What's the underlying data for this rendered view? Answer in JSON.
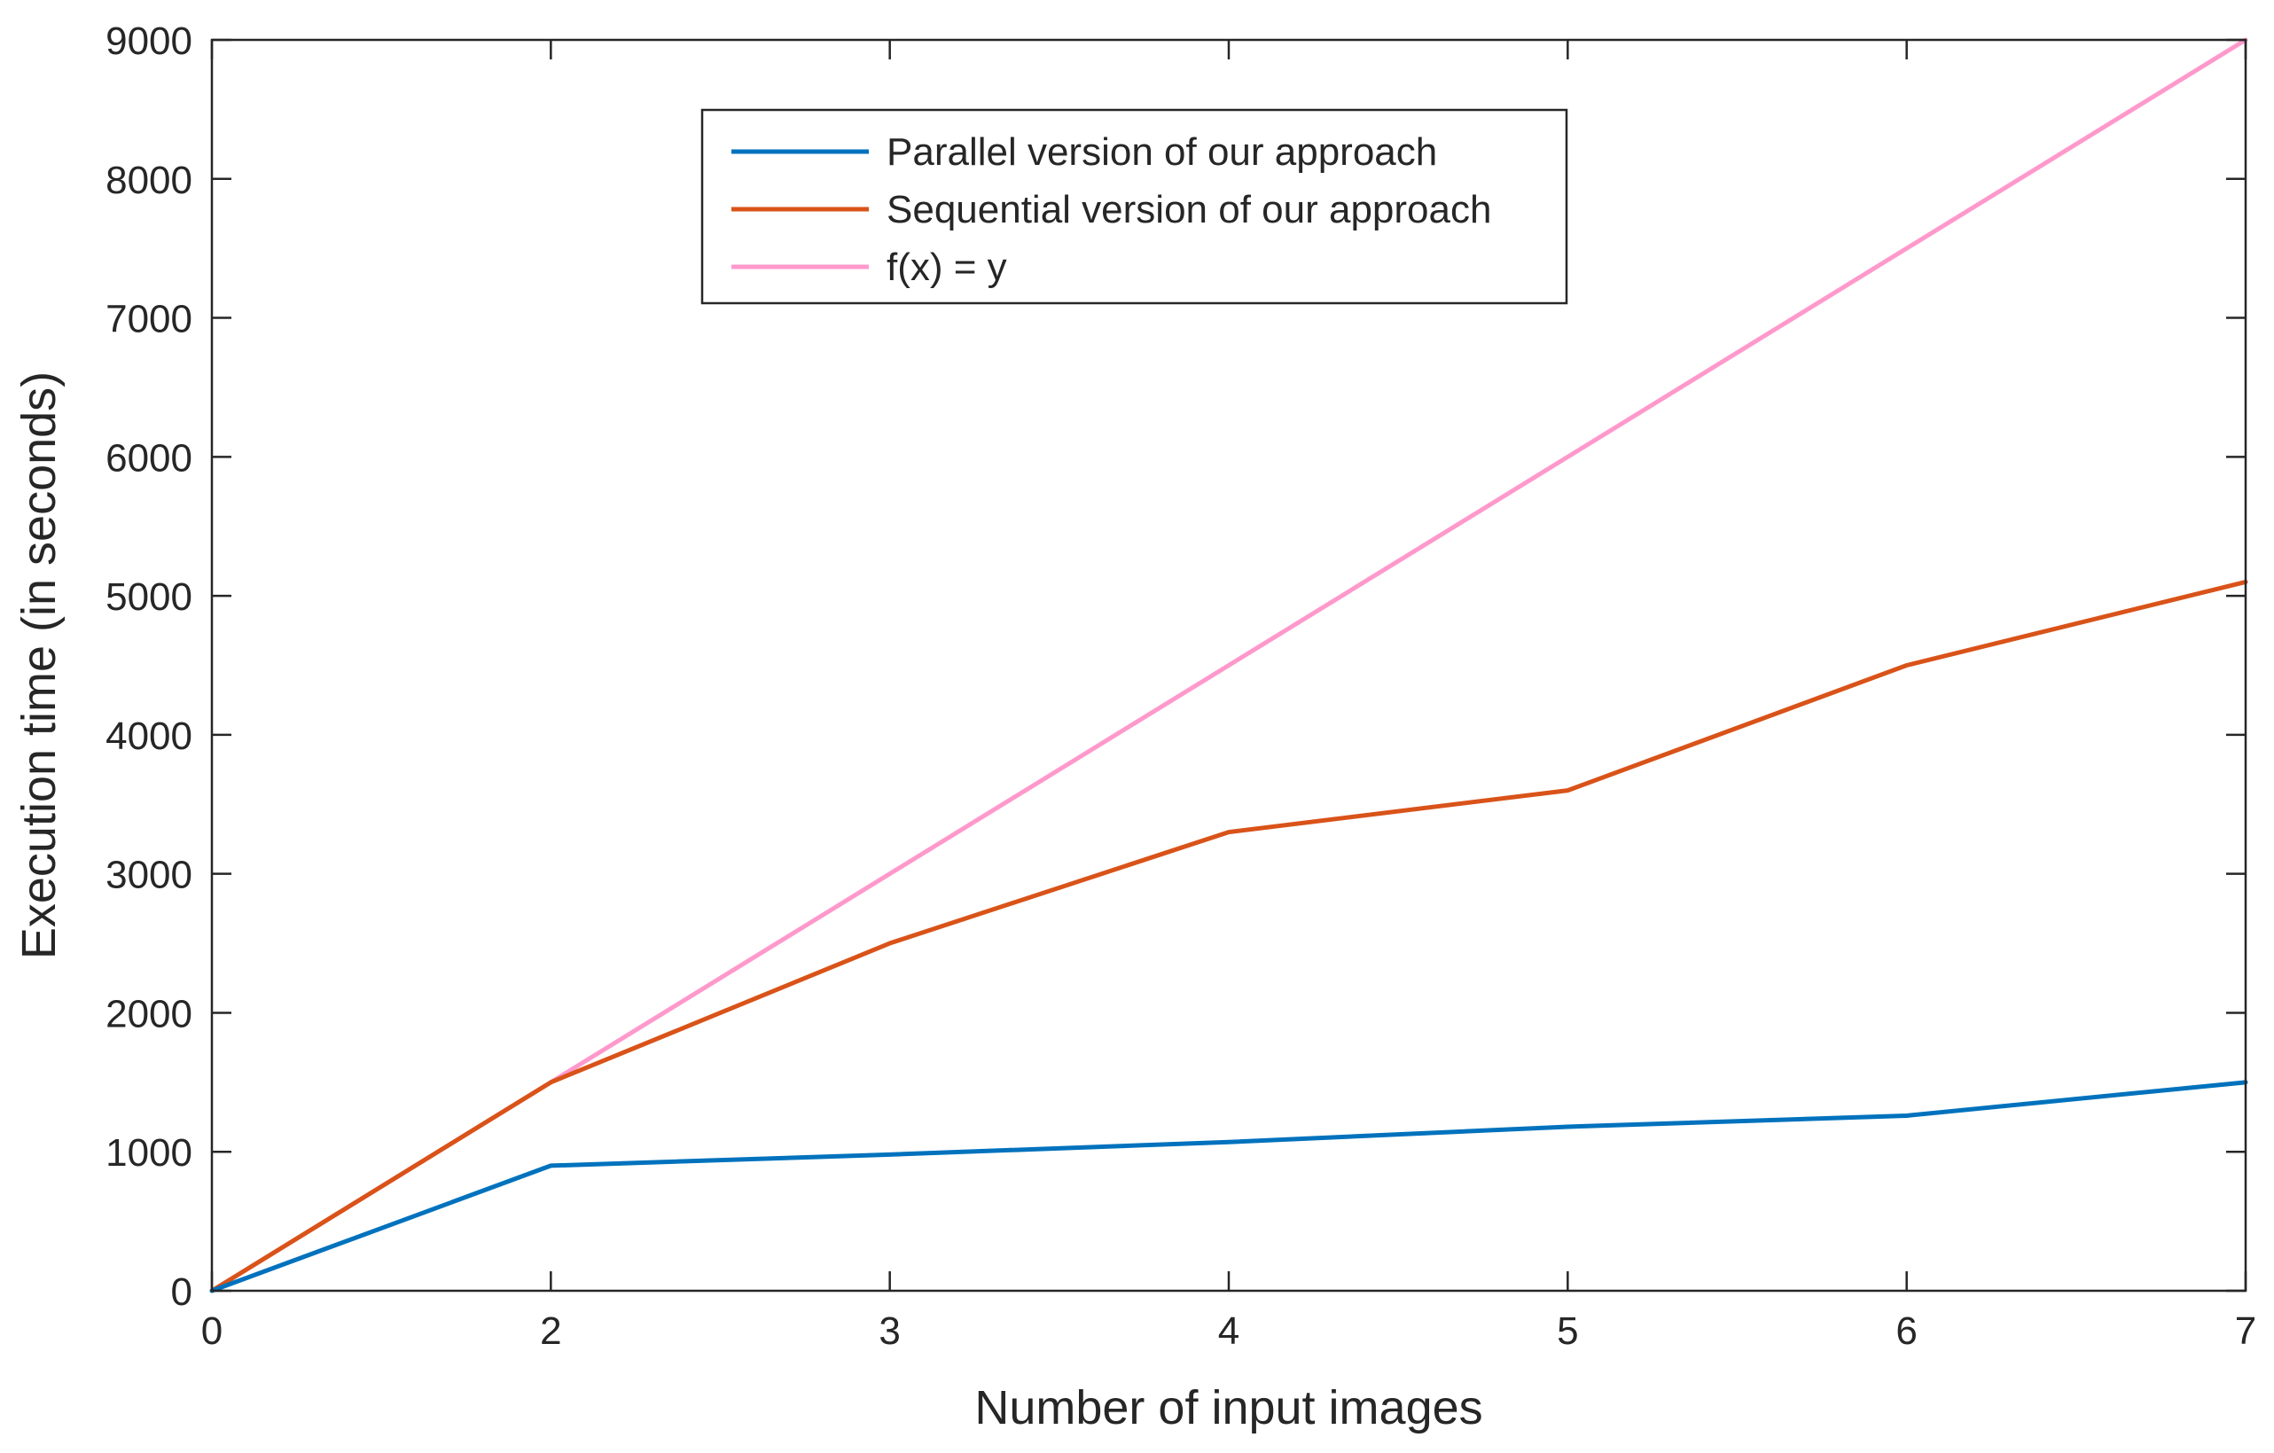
{
  "chart_data": {
    "type": "line",
    "title": "",
    "xlabel": "Number of input images",
    "ylabel": "Execution time (in seconds)",
    "grid": false,
    "legend_position": "top-center",
    "x_tick_labels": [
      "0",
      "2",
      "3",
      "4",
      "5",
      "6",
      "7"
    ],
    "y_tick_labels": [
      "0",
      "1000",
      "2000",
      "3000",
      "4000",
      "5000",
      "6000",
      "7000",
      "8000",
      "9000"
    ],
    "x_positions": [
      0,
      1,
      2,
      3,
      4,
      5,
      6
    ],
    "ylim": [
      0,
      9000
    ],
    "series": [
      {
        "name": "Parallel version of our approach",
        "color": "#0072BD",
        "values": [
          0,
          900,
          980,
          1070,
          1180,
          1260,
          1500
        ]
      },
      {
        "name": "Sequential version of our approach",
        "color": "#D95319",
        "values": [
          0,
          1500,
          2500,
          3300,
          3600,
          4500,
          5100
        ]
      },
      {
        "name": "f(x) = y",
        "color": "#FF99CC",
        "values": [
          0,
          1500,
          3000,
          4500,
          6000,
          7500,
          9000
        ]
      }
    ]
  }
}
